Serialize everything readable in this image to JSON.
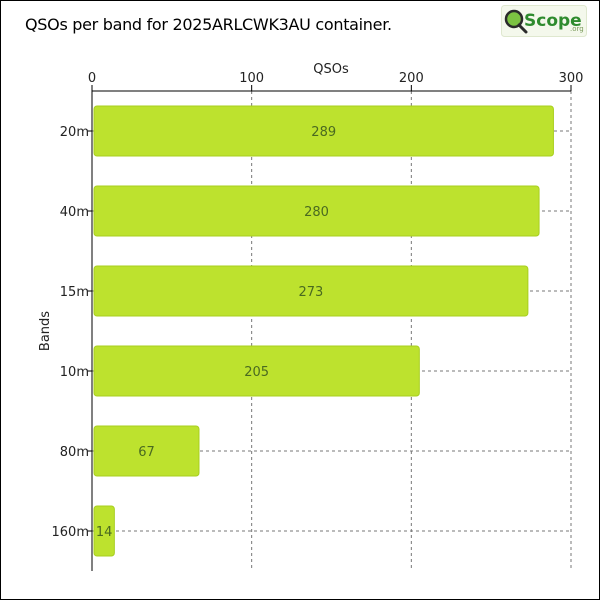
{
  "title": "QSOs per band for 2025ARLCWK3AU container.",
  "logo": {
    "text": "Scope",
    "suffix": ".org",
    "icon": "magnifier-q-icon"
  },
  "colors": {
    "bar": "#bde22e",
    "bar_border": "#a8cf1e",
    "grid": "#777777",
    "label": "#4a6a20"
  },
  "chart_data": {
    "type": "bar",
    "orientation": "horizontal",
    "categories": [
      "20m",
      "40m",
      "15m",
      "10m",
      "80m",
      "160m"
    ],
    "values": [
      289,
      280,
      273,
      205,
      67,
      14
    ],
    "xlabel": "QSOs",
    "ylabel": "Bands",
    "xlim": [
      0,
      300
    ],
    "xticks": [
      "0",
      "100",
      "200",
      "300"
    ],
    "x_axis_position": "top",
    "grid": true,
    "legend": "none"
  }
}
